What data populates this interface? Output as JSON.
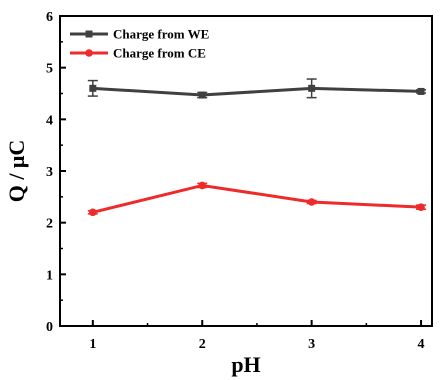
{
  "chart_data": {
    "type": "line",
    "xlabel": "pH",
    "ylabel": "Q / μC",
    "x": [
      1,
      2,
      3,
      4
    ],
    "xlim": [
      0.7,
      4.1
    ],
    "ylim": [
      0,
      6
    ],
    "xticks": [
      "1",
      "2",
      "3",
      "4"
    ],
    "yticks": [
      "0",
      "1",
      "2",
      "3",
      "4",
      "5",
      "6"
    ],
    "grid": false,
    "legend_position": "top-left",
    "series": [
      {
        "name": "Charge from WE",
        "color": "#404040",
        "marker": "square",
        "values": [
          4.6,
          4.47,
          4.6,
          4.54
        ],
        "errors": [
          0.15,
          0.05,
          0.18,
          0.03
        ]
      },
      {
        "name": "Charge from CE",
        "color": "#ee2a2a",
        "marker": "circle",
        "values": [
          2.2,
          2.72,
          2.4,
          2.3
        ],
        "errors": [
          0.03,
          0.04,
          0.03,
          0.04
        ]
      }
    ]
  }
}
